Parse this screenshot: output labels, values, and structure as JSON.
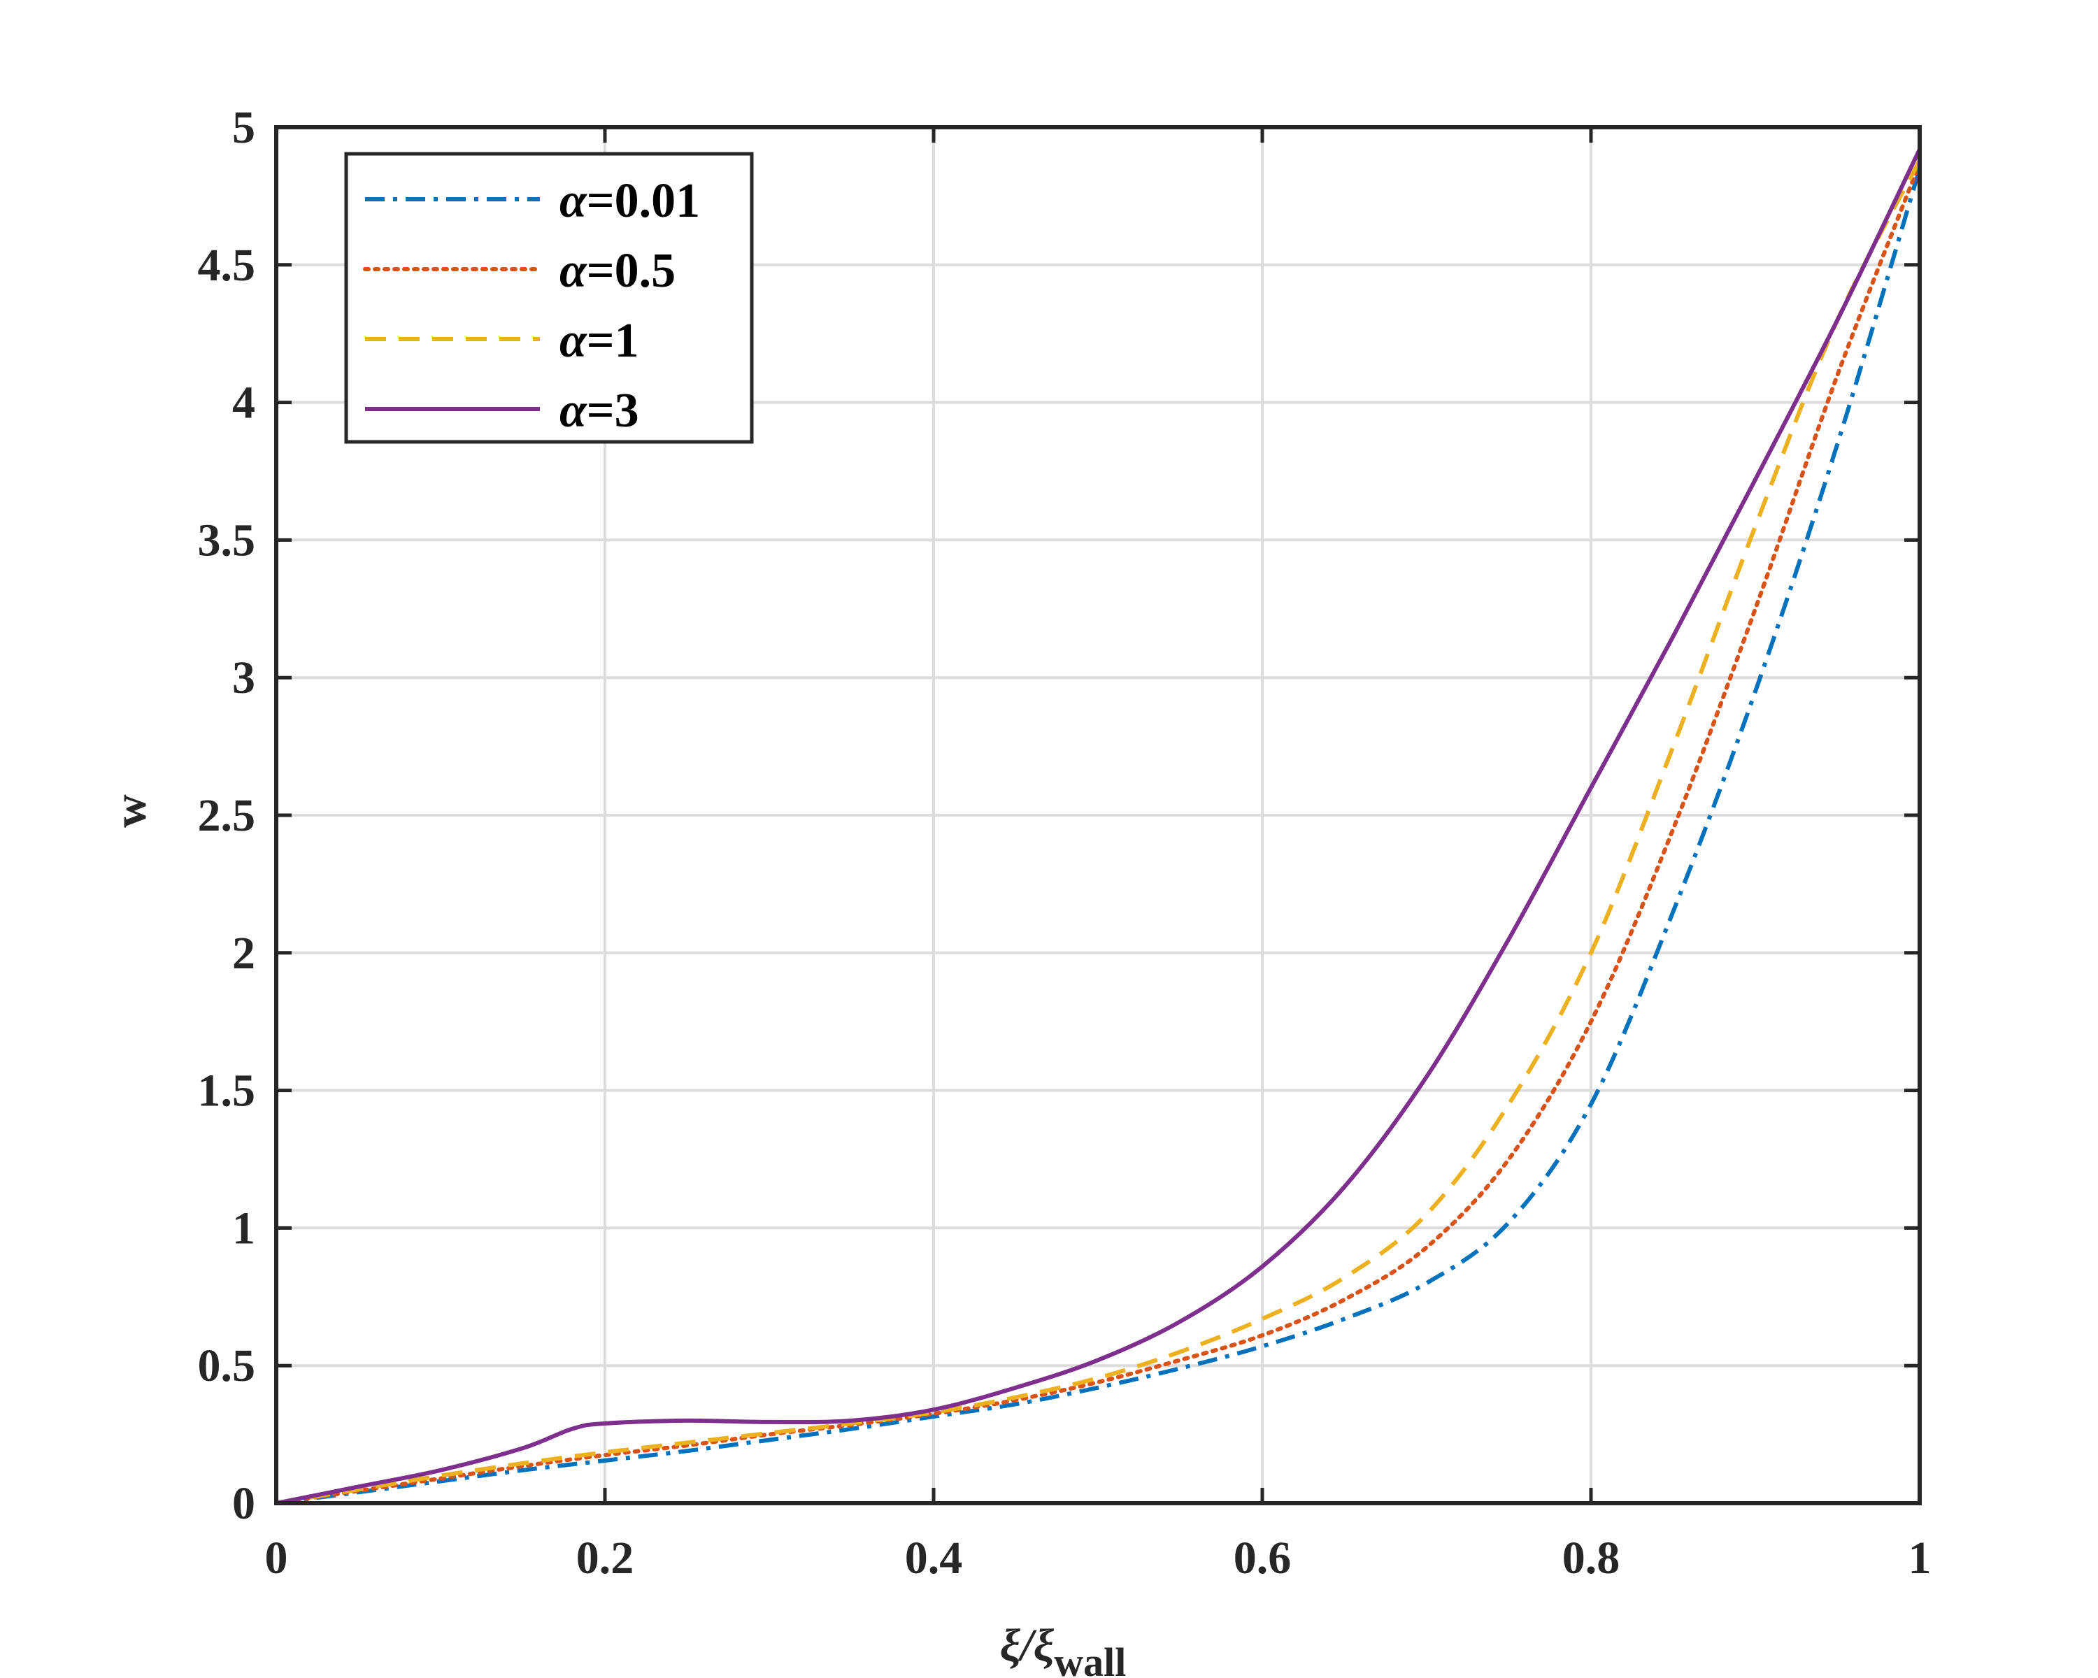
{
  "chart_data": {
    "type": "line",
    "title": "",
    "xlabel": "ξ/ξ",
    "xlabel_subscript": "wall",
    "ylabel": "w",
    "xlim": [
      0,
      1
    ],
    "ylim": [
      0,
      5
    ],
    "xticks": [
      "0",
      "0.2",
      "0.4",
      "0.6",
      "0.8",
      "1"
    ],
    "yticks": [
      "0",
      "0.5",
      "1",
      "1.5",
      "2",
      "2.5",
      "3",
      "3.5",
      "4",
      "4.5",
      "5"
    ],
    "grid": true,
    "legend_position": "top-left",
    "series": [
      {
        "name": "α=0.01",
        "greek": "α",
        "value_label": "=0.01",
        "color": "#0072bd",
        "style": "dash-dot",
        "x": [
          0,
          0.05,
          0.1,
          0.15,
          0.2,
          0.25,
          0.3,
          0.35,
          0.4,
          0.45,
          0.5,
          0.55,
          0.6,
          0.65,
          0.7,
          0.75,
          0.8,
          0.85,
          0.9,
          0.95,
          1
        ],
        "y": [
          0,
          0.04,
          0.08,
          0.12,
          0.155,
          0.19,
          0.23,
          0.27,
          0.315,
          0.36,
          0.42,
          0.49,
          0.57,
          0.67,
          0.8,
          1.02,
          1.45,
          2.15,
          2.95,
          3.85,
          4.85
        ]
      },
      {
        "name": "α=0.5",
        "greek": "α",
        "value_label": "=0.5",
        "color": "#d95319",
        "style": "dotted",
        "x": [
          0,
          0.05,
          0.1,
          0.15,
          0.2,
          0.25,
          0.3,
          0.35,
          0.4,
          0.45,
          0.5,
          0.55,
          0.6,
          0.65,
          0.7,
          0.75,
          0.8,
          0.85,
          0.9,
          0.95,
          1
        ],
        "y": [
          0,
          0.045,
          0.09,
          0.135,
          0.175,
          0.21,
          0.25,
          0.285,
          0.325,
          0.375,
          0.44,
          0.52,
          0.61,
          0.74,
          0.93,
          1.25,
          1.75,
          2.45,
          3.25,
          4.1,
          4.87
        ]
      },
      {
        "name": "α=1",
        "greek": "α",
        "value_label": "=1",
        "color": "#edb120",
        "style": "dashed",
        "x": [
          0,
          0.05,
          0.1,
          0.15,
          0.2,
          0.25,
          0.3,
          0.35,
          0.4,
          0.45,
          0.5,
          0.55,
          0.6,
          0.65,
          0.7,
          0.75,
          0.8,
          0.85,
          0.9,
          0.95,
          1
        ],
        "y": [
          0,
          0.05,
          0.1,
          0.145,
          0.185,
          0.22,
          0.255,
          0.29,
          0.33,
          0.385,
          0.455,
          0.55,
          0.67,
          0.82,
          1.05,
          1.45,
          2.0,
          2.75,
          3.55,
          4.3,
          4.88
        ]
      },
      {
        "name": "α=3",
        "greek": "α",
        "value_label": "=3",
        "color": "#7e2f8e",
        "style": "solid",
        "x": [
          0,
          0.05,
          0.1,
          0.15,
          0.18,
          0.2,
          0.25,
          0.3,
          0.35,
          0.4,
          0.45,
          0.5,
          0.55,
          0.6,
          0.65,
          0.7,
          0.75,
          0.8,
          0.85,
          0.9,
          0.95,
          1
        ],
        "y": [
          0,
          0.06,
          0.12,
          0.2,
          0.27,
          0.29,
          0.3,
          0.295,
          0.3,
          0.34,
          0.42,
          0.52,
          0.66,
          0.86,
          1.15,
          1.55,
          2.05,
          2.6,
          3.15,
          3.72,
          4.3,
          4.92
        ]
      }
    ]
  }
}
